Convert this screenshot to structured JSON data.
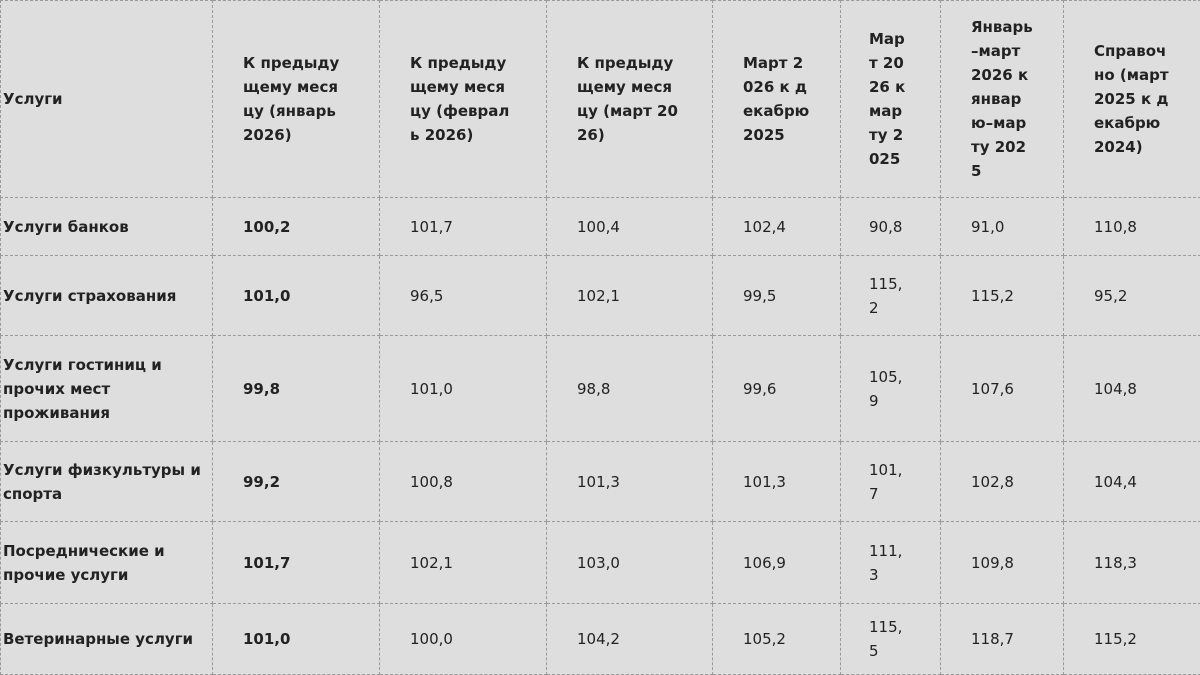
{
  "table": {
    "header": [
      "Услуги",
      "К предыдущему месяцу (январь 2026)",
      "К предыдущему месяцу (февраль 2026)",
      "К предыдущему месяцу (март 2026)",
      "Март 2026 к декабрю 2025",
      "Март 2026 к марту 2025",
      "Январь–март 2026 к январю–марту 2025",
      "Справочно (март 2025 к декабрю 2024)"
    ],
    "rows": [
      [
        "Услуги банков",
        "100,2",
        "101,7",
        "100,4",
        "102,4",
        "90,8",
        "91,0",
        "110,8"
      ],
      [
        "Услуги страхования",
        "101,0",
        "96,5",
        "102,1",
        "99,5",
        "115,2",
        "115,2",
        "95,2"
      ],
      [
        "Услуги гостиниц и прочих мест проживания",
        "99,8",
        "101,0",
        "98,8",
        "99,6",
        "105,9",
        "107,6",
        "104,8"
      ],
      [
        "Услуги физкультуры и спорта",
        "99,2",
        "100,8",
        "101,3",
        "101,3",
        "101,7",
        "102,8",
        "104,4"
      ],
      [
        "Посреднические и прочие услуги",
        "101,7",
        "102,1",
        "103,0",
        "106,9",
        "111,3",
        "109,8",
        "118,3"
      ],
      [
        "Ветеринарные услуги",
        "101,0",
        "100,0",
        "104,2",
        "105,2",
        "115,5",
        "118,7",
        "115,2"
      ]
    ]
  }
}
